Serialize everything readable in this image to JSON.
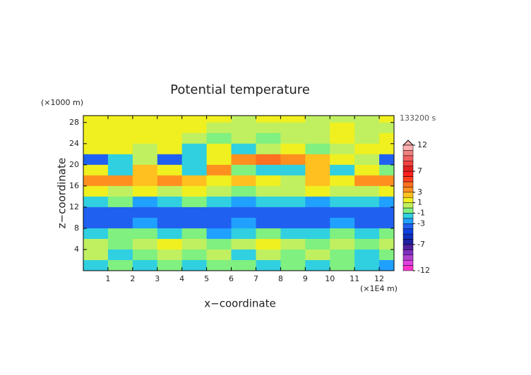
{
  "chart_data": {
    "type": "heatmap",
    "title": "Potential temperature",
    "xlabel": "x−coordinate",
    "ylabel": "z−coordinate",
    "xunit": "(×1E4 m)",
    "yunit": "(×1000 m)",
    "time_label": "133200 s",
    "xlim": [
      0,
      12.6
    ],
    "ylim": [
      0,
      29.3
    ],
    "xticks": [
      1,
      2,
      3,
      4,
      5,
      6,
      7,
      8,
      9,
      10,
      11,
      12
    ],
    "yticks": [
      4,
      8,
      12,
      16,
      20,
      24,
      28
    ],
    "x": [
      0.5,
      1.5,
      2.5,
      3.5,
      4.5,
      5.5,
      6.5,
      7.5,
      8.5,
      9.5,
      10.5,
      11.5,
      12.5
    ],
    "y": [
      29,
      27,
      25,
      23,
      21,
      19,
      17,
      15,
      13,
      11,
      9,
      7,
      5,
      3,
      1
    ],
    "z": [
      [
        1.5,
        1.5,
        1.5,
        1.5,
        1.5,
        1.5,
        0.5,
        1.5,
        1.5,
        0.5,
        0.5,
        0.5,
        1.5
      ],
      [
        1.5,
        1.5,
        1.5,
        1.5,
        1.5,
        0.5,
        0.5,
        0.5,
        0.5,
        0.5,
        1.5,
        0.5,
        0.5
      ],
      [
        1.5,
        1.5,
        1.5,
        1.5,
        0.5,
        -0.5,
        0.5,
        -0.5,
        0.5,
        0.5,
        1.5,
        0.5,
        1.5
      ],
      [
        1.5,
        1.5,
        0.5,
        1.5,
        -1.5,
        1.5,
        -1.5,
        0.5,
        1.5,
        -0.5,
        0.5,
        1.5,
        1.5
      ],
      [
        -3.5,
        -1.5,
        0.5,
        -3.5,
        -1.5,
        1.5,
        3.5,
        4.5,
        3.5,
        2.5,
        1.5,
        0.5,
        -3.5
      ],
      [
        1.5,
        -1.5,
        2.5,
        1.5,
        -1.5,
        3.5,
        -0.5,
        -1.5,
        -1.5,
        2.5,
        -1.5,
        1.5,
        -0.5
      ],
      [
        3.5,
        3.5,
        2.5,
        3.5,
        2.5,
        1.5,
        2.5,
        1.5,
        0.5,
        2.5,
        1.5,
        3.5,
        3.5
      ],
      [
        1.5,
        0.5,
        1.5,
        0.5,
        1.5,
        0.5,
        -0.5,
        0.5,
        0.5,
        1.5,
        0.5,
        0.5,
        1.5
      ],
      [
        -1.5,
        -0.5,
        -2.5,
        -1.5,
        -0.5,
        -1.5,
        -2.5,
        -1.5,
        -1.5,
        -2.5,
        -1.5,
        -1.5,
        -2.5
      ],
      [
        -3.5,
        -3.5,
        -3.5,
        -3.5,
        -3.5,
        -3.5,
        -3.5,
        -3.5,
        -3.5,
        -3.5,
        -3.5,
        -3.5,
        -3.5
      ],
      [
        -3.5,
        -3.5,
        -2.5,
        -3.5,
        -3.5,
        -3.5,
        -2.5,
        -3.5,
        -3.5,
        -3.5,
        -2.5,
        -3.5,
        -3.5
      ],
      [
        -1.5,
        -0.5,
        -0.5,
        -1.5,
        -0.5,
        -2.5,
        -1.5,
        -0.5,
        -1.5,
        -1.5,
        -0.5,
        -1.5,
        -0.5
      ],
      [
        0.5,
        -0.5,
        0.5,
        1.5,
        0.5,
        -0.5,
        0.5,
        1.5,
        0.5,
        -0.5,
        0.5,
        -0.5,
        0.5
      ],
      [
        0.5,
        -1.5,
        -0.5,
        0.5,
        -0.5,
        0.5,
        -1.5,
        0.5,
        -0.5,
        0.5,
        -0.5,
        -1.5,
        -0.5
      ],
      [
        -1.5,
        -0.5,
        -1.5,
        -0.5,
        -1.5,
        -0.5,
        -0.5,
        -1.5,
        -0.5,
        -1.5,
        -0.5,
        -1.5,
        -2.5
      ]
    ],
    "colorbar": {
      "bounds": [
        -12,
        -11,
        -10,
        -9,
        -8,
        -7,
        -6,
        -5,
        -4,
        -3,
        -2,
        -1,
        0,
        1,
        2,
        3,
        4,
        5,
        6,
        7,
        8,
        9,
        10,
        11,
        12
      ],
      "colors": [
        "#ff33cc",
        "#e040e0",
        "#b040d0",
        "#8030c0",
        "#5020a0",
        "#2020a0",
        "#1030c0",
        "#1040e0",
        "#2060f0",
        "#20a0ff",
        "#30d0e0",
        "#80f080",
        "#c0f060",
        "#f0f020",
        "#ffc020",
        "#ff9020",
        "#ff7020",
        "#ff4020",
        "#ff2020",
        "#e02020",
        "#f04040",
        "#f06060",
        "#f08080",
        "#ffb0b0"
      ],
      "ticks": [
        -12,
        -7,
        -3,
        -1,
        1,
        3,
        7,
        12
      ]
    }
  }
}
